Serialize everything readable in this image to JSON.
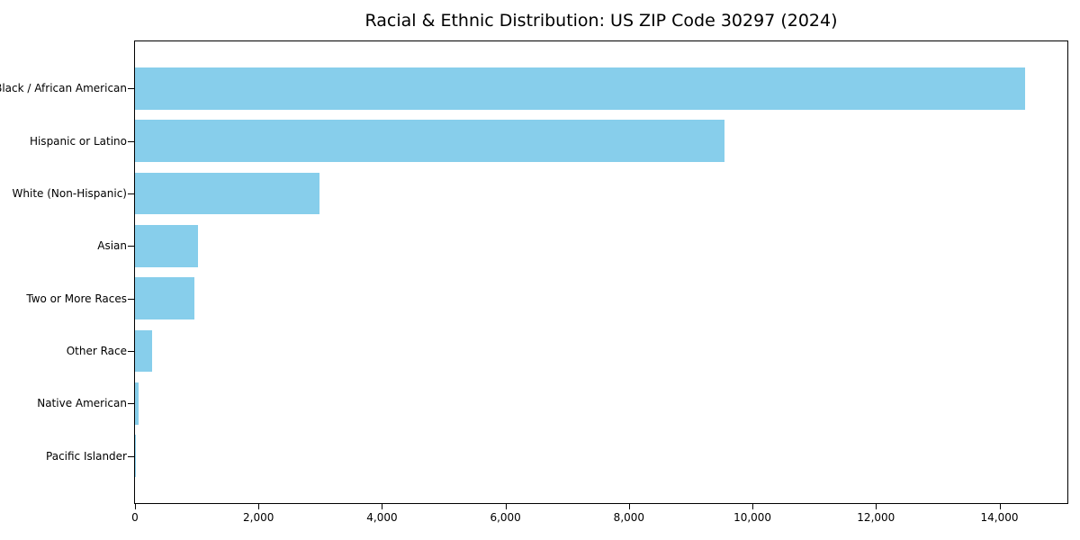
{
  "figure": {
    "background": "#ffffff",
    "text_color": "#000000"
  },
  "chart_data": {
    "type": "bar",
    "orientation": "horizontal",
    "title": "Racial & Ethnic Distribution: US ZIP Code 30297 (2024)",
    "categories": [
      "Black / African American",
      "Hispanic or Latino",
      "White (Non-Hispanic)",
      "Asian",
      "Two or More Races",
      "Other Race",
      "Native American",
      "Pacific Islander"
    ],
    "values": [
      14410,
      9550,
      2990,
      1020,
      960,
      280,
      55,
      10
    ],
    "xlabel": "",
    "ylabel": "",
    "xlim": [
      0,
      15100
    ],
    "x_ticks": [
      0,
      2000,
      4000,
      6000,
      8000,
      10000,
      12000,
      14000
    ],
    "x_tick_labels": [
      "0",
      "2,000",
      "4,000",
      "6,000",
      "8,000",
      "10,000",
      "12,000",
      "14,000"
    ],
    "bar_color": "#87CEEB",
    "grid": false,
    "legend_position": "none"
  }
}
